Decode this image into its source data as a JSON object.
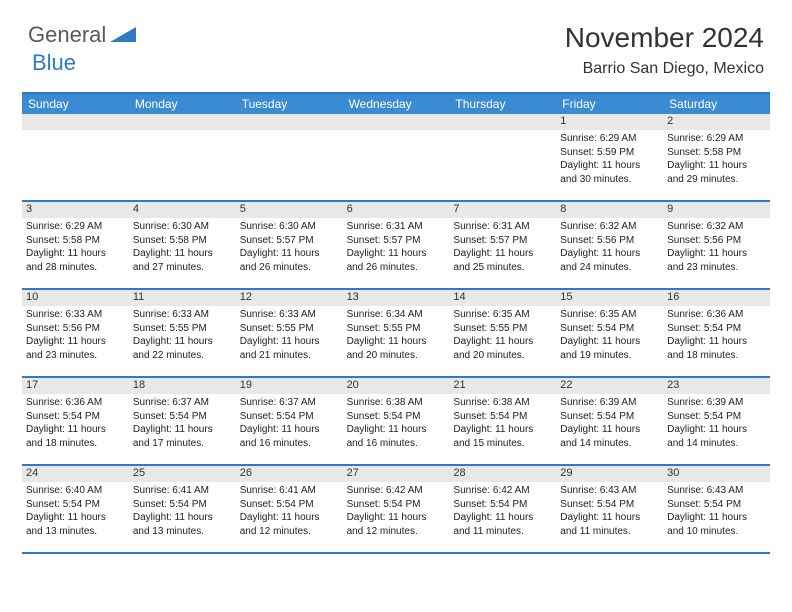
{
  "logo": {
    "general": "General",
    "blue": "Blue"
  },
  "title": "November 2024",
  "location": "Barrio San Diego, Mexico",
  "day_headers": [
    "Sunday",
    "Monday",
    "Tuesday",
    "Wednesday",
    "Thursday",
    "Friday",
    "Saturday"
  ],
  "colors": {
    "header_bg": "#3a8bd2",
    "border": "#2f7ac4",
    "band": "#e8e8e8",
    "text": "#222222"
  },
  "weeks": [
    [
      {
        "day": "",
        "sunrise": "",
        "sunset": "",
        "daylight": ""
      },
      {
        "day": "",
        "sunrise": "",
        "sunset": "",
        "daylight": ""
      },
      {
        "day": "",
        "sunrise": "",
        "sunset": "",
        "daylight": ""
      },
      {
        "day": "",
        "sunrise": "",
        "sunset": "",
        "daylight": ""
      },
      {
        "day": "",
        "sunrise": "",
        "sunset": "",
        "daylight": ""
      },
      {
        "day": "1",
        "sunrise": "Sunrise: 6:29 AM",
        "sunset": "Sunset: 5:59 PM",
        "daylight": "Daylight: 11 hours and 30 minutes."
      },
      {
        "day": "2",
        "sunrise": "Sunrise: 6:29 AM",
        "sunset": "Sunset: 5:58 PM",
        "daylight": "Daylight: 11 hours and 29 minutes."
      }
    ],
    [
      {
        "day": "3",
        "sunrise": "Sunrise: 6:29 AM",
        "sunset": "Sunset: 5:58 PM",
        "daylight": "Daylight: 11 hours and 28 minutes."
      },
      {
        "day": "4",
        "sunrise": "Sunrise: 6:30 AM",
        "sunset": "Sunset: 5:58 PM",
        "daylight": "Daylight: 11 hours and 27 minutes."
      },
      {
        "day": "5",
        "sunrise": "Sunrise: 6:30 AM",
        "sunset": "Sunset: 5:57 PM",
        "daylight": "Daylight: 11 hours and 26 minutes."
      },
      {
        "day": "6",
        "sunrise": "Sunrise: 6:31 AM",
        "sunset": "Sunset: 5:57 PM",
        "daylight": "Daylight: 11 hours and 26 minutes."
      },
      {
        "day": "7",
        "sunrise": "Sunrise: 6:31 AM",
        "sunset": "Sunset: 5:57 PM",
        "daylight": "Daylight: 11 hours and 25 minutes."
      },
      {
        "day": "8",
        "sunrise": "Sunrise: 6:32 AM",
        "sunset": "Sunset: 5:56 PM",
        "daylight": "Daylight: 11 hours and 24 minutes."
      },
      {
        "day": "9",
        "sunrise": "Sunrise: 6:32 AM",
        "sunset": "Sunset: 5:56 PM",
        "daylight": "Daylight: 11 hours and 23 minutes."
      }
    ],
    [
      {
        "day": "10",
        "sunrise": "Sunrise: 6:33 AM",
        "sunset": "Sunset: 5:56 PM",
        "daylight": "Daylight: 11 hours and 23 minutes."
      },
      {
        "day": "11",
        "sunrise": "Sunrise: 6:33 AM",
        "sunset": "Sunset: 5:55 PM",
        "daylight": "Daylight: 11 hours and 22 minutes."
      },
      {
        "day": "12",
        "sunrise": "Sunrise: 6:33 AM",
        "sunset": "Sunset: 5:55 PM",
        "daylight": "Daylight: 11 hours and 21 minutes."
      },
      {
        "day": "13",
        "sunrise": "Sunrise: 6:34 AM",
        "sunset": "Sunset: 5:55 PM",
        "daylight": "Daylight: 11 hours and 20 minutes."
      },
      {
        "day": "14",
        "sunrise": "Sunrise: 6:35 AM",
        "sunset": "Sunset: 5:55 PM",
        "daylight": "Daylight: 11 hours and 20 minutes."
      },
      {
        "day": "15",
        "sunrise": "Sunrise: 6:35 AM",
        "sunset": "Sunset: 5:54 PM",
        "daylight": "Daylight: 11 hours and 19 minutes."
      },
      {
        "day": "16",
        "sunrise": "Sunrise: 6:36 AM",
        "sunset": "Sunset: 5:54 PM",
        "daylight": "Daylight: 11 hours and 18 minutes."
      }
    ],
    [
      {
        "day": "17",
        "sunrise": "Sunrise: 6:36 AM",
        "sunset": "Sunset: 5:54 PM",
        "daylight": "Daylight: 11 hours and 18 minutes."
      },
      {
        "day": "18",
        "sunrise": "Sunrise: 6:37 AM",
        "sunset": "Sunset: 5:54 PM",
        "daylight": "Daylight: 11 hours and 17 minutes."
      },
      {
        "day": "19",
        "sunrise": "Sunrise: 6:37 AM",
        "sunset": "Sunset: 5:54 PM",
        "daylight": "Daylight: 11 hours and 16 minutes."
      },
      {
        "day": "20",
        "sunrise": "Sunrise: 6:38 AM",
        "sunset": "Sunset: 5:54 PM",
        "daylight": "Daylight: 11 hours and 16 minutes."
      },
      {
        "day": "21",
        "sunrise": "Sunrise: 6:38 AM",
        "sunset": "Sunset: 5:54 PM",
        "daylight": "Daylight: 11 hours and 15 minutes."
      },
      {
        "day": "22",
        "sunrise": "Sunrise: 6:39 AM",
        "sunset": "Sunset: 5:54 PM",
        "daylight": "Daylight: 11 hours and 14 minutes."
      },
      {
        "day": "23",
        "sunrise": "Sunrise: 6:39 AM",
        "sunset": "Sunset: 5:54 PM",
        "daylight": "Daylight: 11 hours and 14 minutes."
      }
    ],
    [
      {
        "day": "24",
        "sunrise": "Sunrise: 6:40 AM",
        "sunset": "Sunset: 5:54 PM",
        "daylight": "Daylight: 11 hours and 13 minutes."
      },
      {
        "day": "25",
        "sunrise": "Sunrise: 6:41 AM",
        "sunset": "Sunset: 5:54 PM",
        "daylight": "Daylight: 11 hours and 13 minutes."
      },
      {
        "day": "26",
        "sunrise": "Sunrise: 6:41 AM",
        "sunset": "Sunset: 5:54 PM",
        "daylight": "Daylight: 11 hours and 12 minutes."
      },
      {
        "day": "27",
        "sunrise": "Sunrise: 6:42 AM",
        "sunset": "Sunset: 5:54 PM",
        "daylight": "Daylight: 11 hours and 12 minutes."
      },
      {
        "day": "28",
        "sunrise": "Sunrise: 6:42 AM",
        "sunset": "Sunset: 5:54 PM",
        "daylight": "Daylight: 11 hours and 11 minutes."
      },
      {
        "day": "29",
        "sunrise": "Sunrise: 6:43 AM",
        "sunset": "Sunset: 5:54 PM",
        "daylight": "Daylight: 11 hours and 11 minutes."
      },
      {
        "day": "30",
        "sunrise": "Sunrise: 6:43 AM",
        "sunset": "Sunset: 5:54 PM",
        "daylight": "Daylight: 11 hours and 10 minutes."
      }
    ]
  ]
}
